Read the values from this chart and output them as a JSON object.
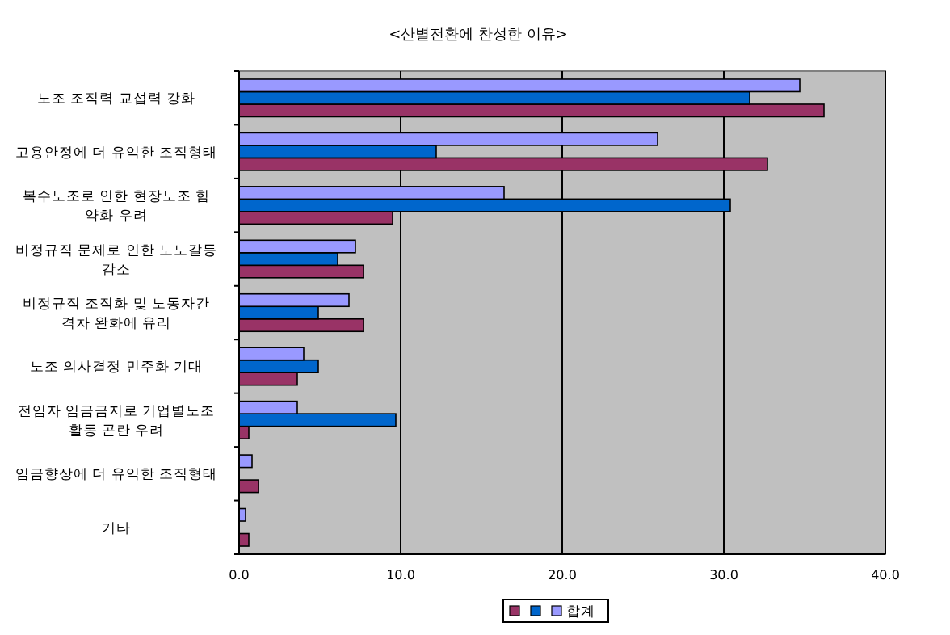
{
  "chart_data": {
    "type": "bar",
    "orientation": "horizontal",
    "title": "<산별전환에 찬성한 이유>",
    "categories": [
      "노조 조직력 교섭력 강화",
      "고용안정에 더 유익한 조직형태",
      "복수노조로 인한 현장노조 힘 약화 우려",
      "비정규직 문제로 인한 노노갈등 감소",
      "비정규직 조직화 및 노동자간 격차 완화에 유리",
      "노조 의사결정 민주화 기대",
      "전임자 임금금지로 기업별노조 활동 곤란 우려",
      "임금향상에 더 유익한 조직형태",
      "기타"
    ],
    "series": [
      {
        "color": "#993366",
        "values": [
          36.2,
          32.7,
          9.5,
          7.7,
          7.7,
          3.6,
          0.6,
          1.2,
          0.6
        ]
      },
      {
        "color": "#0066cc",
        "values": [
          31.6,
          12.2,
          30.4,
          6.1,
          4.9,
          4.9,
          9.7,
          null,
          null
        ]
      },
      {
        "name": "합계",
        "color": "#9999ff",
        "values": [
          34.7,
          25.9,
          16.4,
          7.2,
          6.8,
          4.0,
          3.6,
          0.8,
          0.4
        ]
      }
    ],
    "xlim": [
      0,
      40
    ],
    "xticks": [
      {
        "value": 0,
        "label": "0.0"
      },
      {
        "value": 10,
        "label": "10.0"
      },
      {
        "value": 20,
        "label": "20.0"
      },
      {
        "value": 30,
        "label": "30.0"
      },
      {
        "value": 40,
        "label": "40.0"
      }
    ],
    "grid": "x",
    "legend": "bottom"
  }
}
